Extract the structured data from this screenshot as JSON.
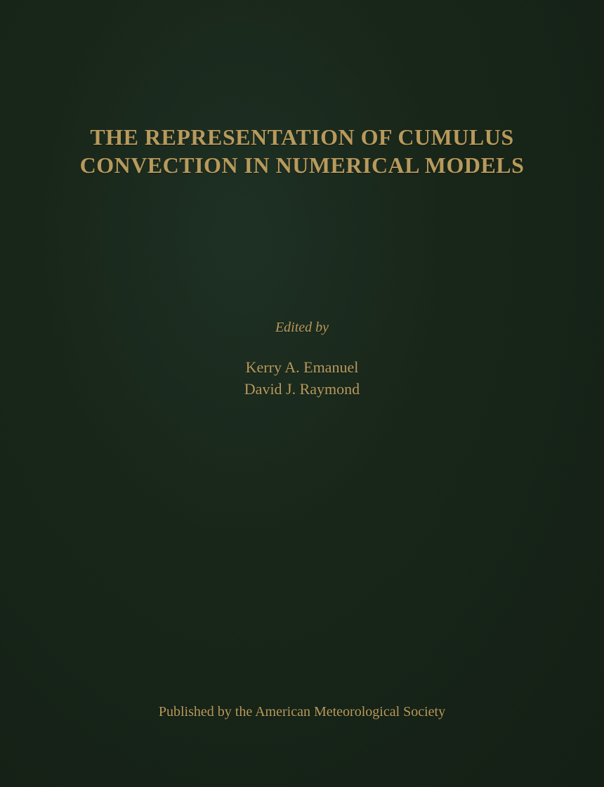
{
  "cover": {
    "title_line1": "THE REPRESENTATION OF CUMULUS",
    "title_line2": "CONVECTION IN NUMERICAL MODELS",
    "edited_by_label": "Edited by",
    "editors": [
      "Kerry A. Emanuel",
      "David J. Raymond"
    ],
    "publisher": "Published by the American Meteorological Society",
    "background_color": "#1a2a1e",
    "text_color": "#b89a5c",
    "title_fontsize": 32,
    "editor_fontsize": 22,
    "publisher_fontsize": 20
  }
}
